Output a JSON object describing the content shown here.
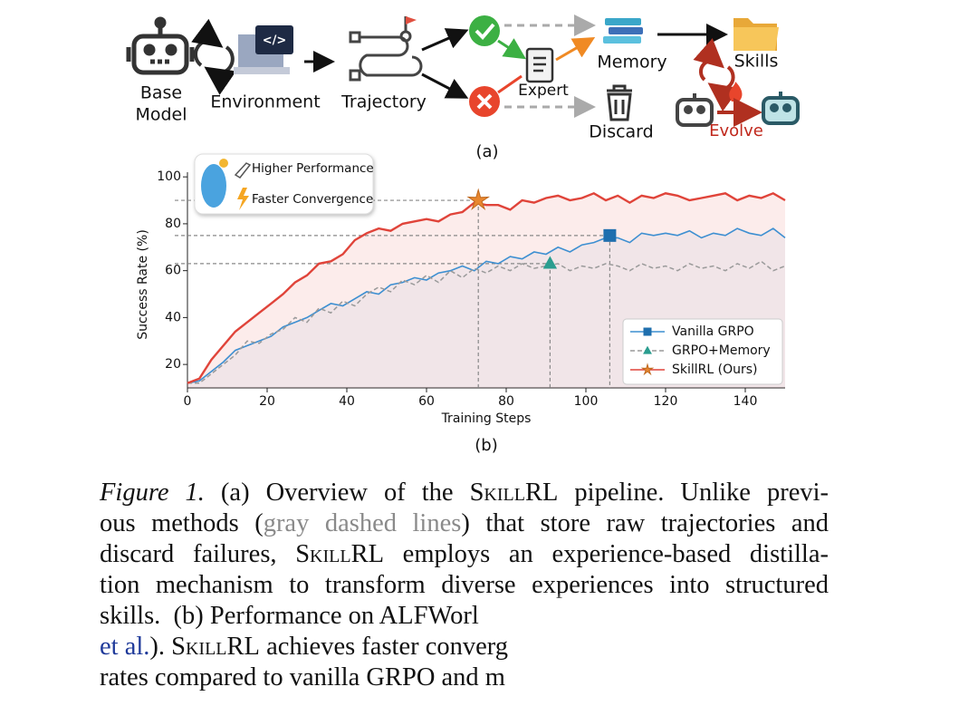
{
  "diagram": {
    "base_model": [
      "Base",
      "Model"
    ],
    "environment": "Environment",
    "trajectory": "Trajectory",
    "expert": "Expert",
    "memory": "Memory",
    "discard": "Discard",
    "skills": "Skills",
    "evolve": "Evolve",
    "sublabel": "(a)"
  },
  "chart_data": {
    "type": "line",
    "sublabel": "(b)",
    "xlabel": "Training Steps",
    "ylabel": "Success Rate (%)",
    "annotations": [
      "Higher Performance",
      "Faster Convergence"
    ],
    "xlim": [
      0,
      150
    ],
    "ylim": [
      10,
      102
    ],
    "xticks": [
      0,
      20,
      40,
      60,
      80,
      100,
      120,
      140
    ],
    "yticks": [
      20,
      40,
      60,
      80,
      100
    ],
    "legend": "lower right",
    "x": [
      0,
      3,
      6,
      9,
      12,
      15,
      18,
      21,
      24,
      27,
      30,
      33,
      36,
      39,
      42,
      45,
      48,
      51,
      54,
      57,
      60,
      63,
      66,
      69,
      72,
      75,
      78,
      81,
      84,
      87,
      90,
      93,
      96,
      99,
      102,
      105,
      108,
      111,
      114,
      117,
      120,
      123,
      126,
      129,
      132,
      135,
      138,
      141,
      144,
      147,
      150
    ],
    "series": [
      {
        "name": "Vanilla GRPO",
        "color": "#3d8fd1",
        "marker": "square",
        "marker_color": "#1f6fae",
        "dash": false,
        "fill": "rgba(90,150,210,0.07)",
        "highlight": {
          "x": 106,
          "y": 75
        },
        "values": [
          12,
          13,
          17,
          21,
          26,
          28,
          30,
          32,
          36,
          38,
          40,
          43,
          46,
          45,
          48,
          51,
          50,
          54,
          55,
          57,
          56,
          59,
          60,
          62,
          60,
          64,
          63,
          66,
          65,
          68,
          67,
          70,
          68,
          71,
          72,
          74,
          74,
          72,
          76,
          75,
          76,
          75,
          77,
          74,
          76,
          75,
          78,
          76,
          75,
          78,
          74
        ]
      },
      {
        "name": "GRPO+Memory",
        "color": "#9a9a9a",
        "marker": "triangle",
        "marker_color": "#2a9d8f",
        "dash": true,
        "fill": "none",
        "highlight": {
          "x": 91,
          "y": 63
        },
        "values": [
          12,
          12,
          16,
          20,
          24,
          30,
          29,
          33,
          35,
          40,
          38,
          44,
          42,
          47,
          45,
          50,
          53,
          51,
          56,
          54,
          58,
          55,
          60,
          57,
          61,
          59,
          62,
          60,
          63,
          61,
          62,
          63,
          60,
          62,
          61,
          63,
          62,
          60,
          63,
          61,
          62,
          60,
          63,
          61,
          62,
          60,
          63,
          61,
          64,
          60,
          62
        ]
      },
      {
        "name": "SkillRL (Ours)",
        "color": "#e0443a",
        "marker": "star",
        "marker_color": "#e8872f",
        "dash": false,
        "fill": "rgba(230,80,70,0.11)",
        "highlight": {
          "x": 73,
          "y": 90
        },
        "values": [
          12,
          14,
          22,
          28,
          34,
          38,
          42,
          46,
          50,
          55,
          58,
          63,
          64,
          67,
          73,
          76,
          78,
          77,
          80,
          81,
          82,
          81,
          84,
          85,
          89,
          88,
          88,
          86,
          90,
          89,
          91,
          92,
          90,
          91,
          93,
          90,
          92,
          89,
          92,
          91,
          93,
          92,
          90,
          91,
          92,
          93,
          90,
          92,
          91,
          93,
          90
        ]
      }
    ]
  },
  "caption": {
    "lines": [
      [
        {
          "text": "Figure 1.",
          "style": "italic"
        },
        {
          "text": " (a) Overview of the "
        },
        {
          "text": "SkillRL",
          "style": "smallcaps"
        },
        {
          "text": " pipeline. Unlike previ-"
        }
      ],
      [
        {
          "text": "ous methods ("
        },
        {
          "text": "gray dashed lines",
          "style": "gray"
        },
        {
          "text": ") that store raw trajectories and"
        }
      ],
      [
        {
          "text": "discard failures, "
        },
        {
          "text": "SkillRL",
          "style": "smallcaps"
        },
        {
          "text": " employs an experience-based distilla-"
        }
      ],
      [
        {
          "text": "tion mechanism to transform diverse experiences into structured"
        }
      ],
      [
        {
          "text": "skills.  (b) Performance on ALFWorl"
        }
      ],
      [
        {
          "text": "et al.",
          "style": "link"
        },
        {
          "text": "). "
        },
        {
          "text": "SkillRL",
          "style": "smallcaps"
        },
        {
          "text": " achieves faster converg"
        }
      ],
      [
        {
          "text": "rates compared to vanilla GRPO and m"
        }
      ]
    ]
  }
}
